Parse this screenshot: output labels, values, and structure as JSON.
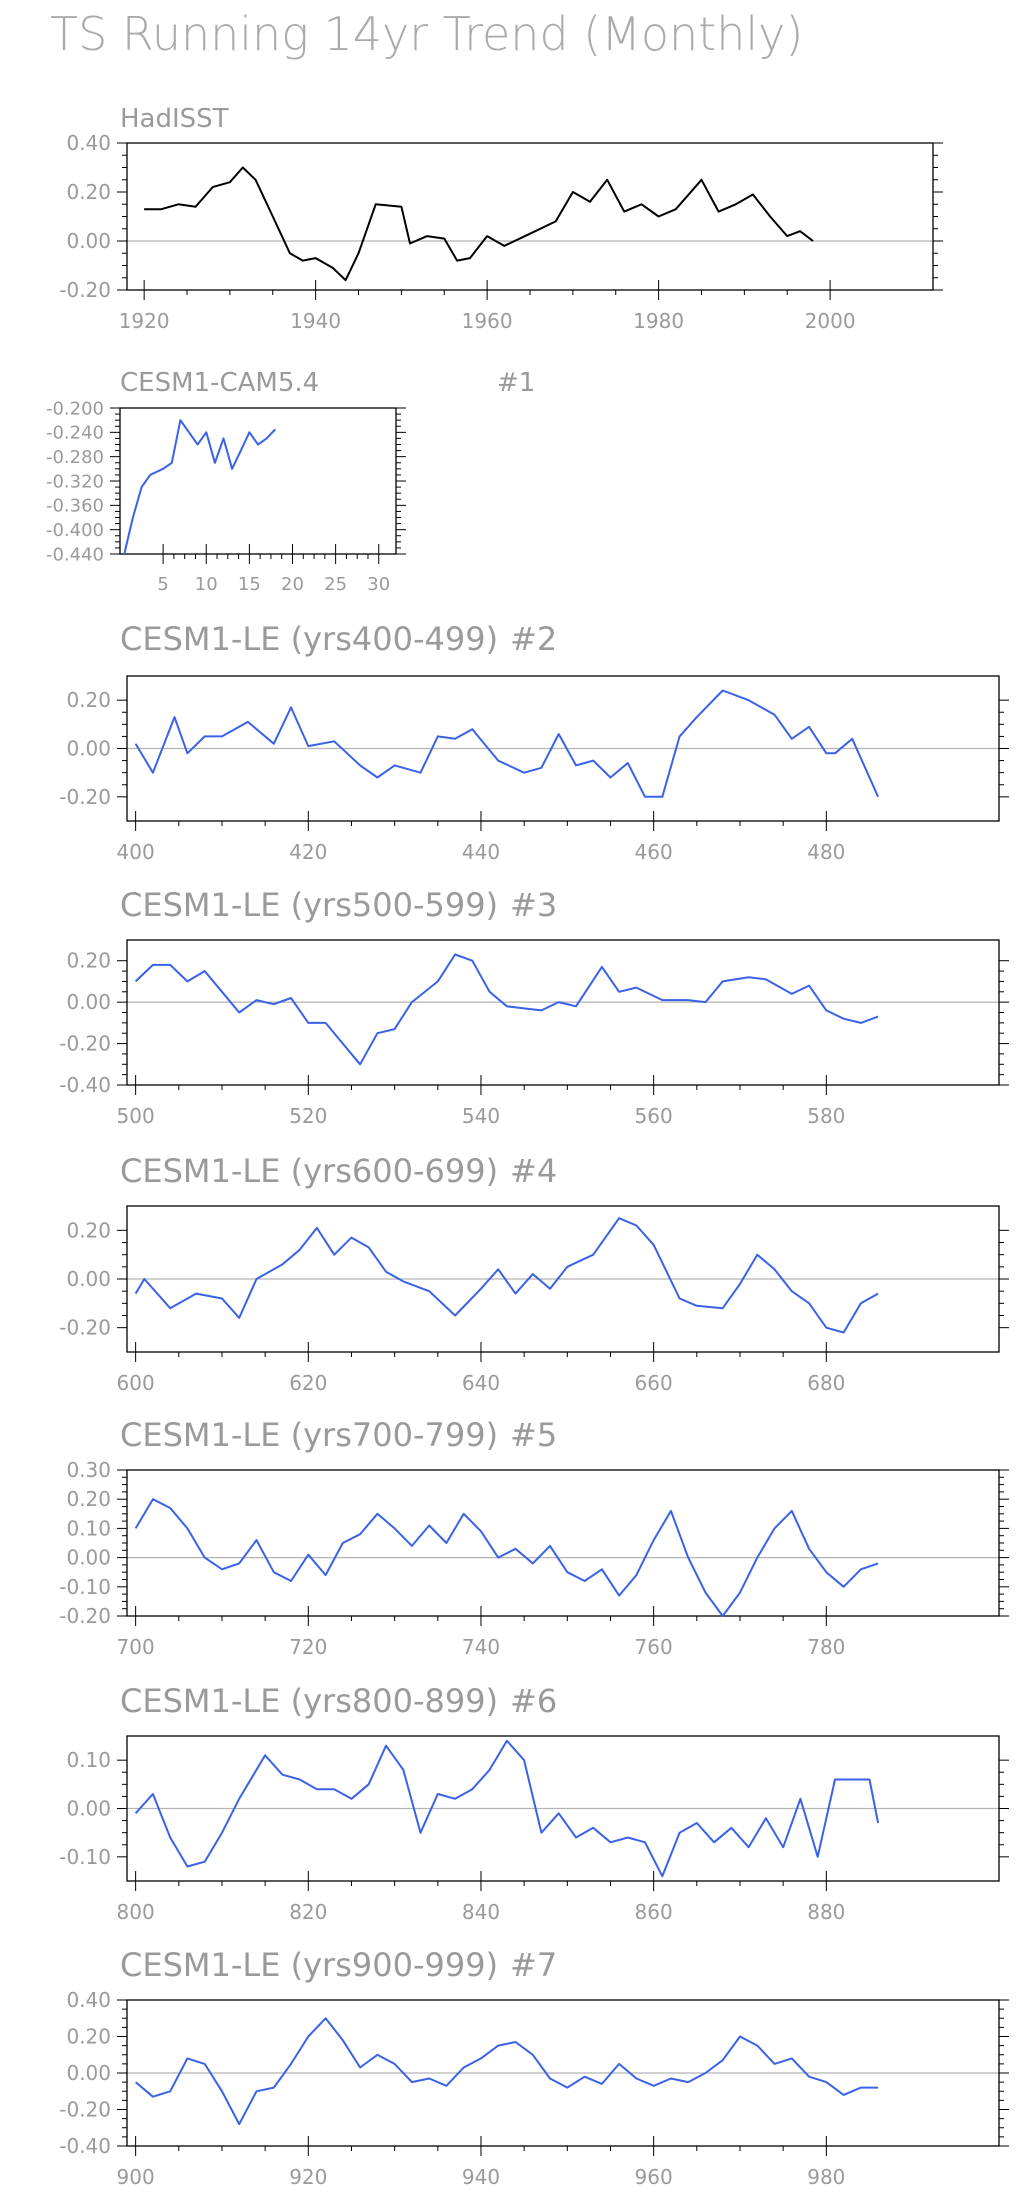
{
  "title": "TS Running 14yr Trend (Monthly)",
  "colors": {
    "text": "#9a9a9a",
    "axis": "#000000",
    "zero_line": "#b4b4b4",
    "obs_line": "#000000",
    "model_line": "#3a62e8"
  },
  "chart_data": [
    {
      "type": "line",
      "label": "HadISST",
      "line_color": "#000000",
      "xlim": [
        1918,
        2012
      ],
      "ylim": [
        -0.2,
        0.4
      ],
      "xticks": [
        1920,
        1940,
        1960,
        1980,
        2000
      ],
      "yticks": [
        -0.2,
        0.0,
        0.2,
        0.4
      ],
      "xticklabels": [
        "1920",
        "1940",
        "1960",
        "1980",
        "2000"
      ],
      "yticklabels": [
        "-0.20",
        "0.00",
        "0.20",
        "0.40"
      ],
      "x": [
        1920,
        1922,
        1924,
        1926,
        1928,
        1930,
        1931.5,
        1933,
        1935,
        1937,
        1938.5,
        1940,
        1942,
        1943.5,
        1945,
        1947,
        1950,
        1951,
        1953,
        1955,
        1956.5,
        1958,
        1960,
        1962,
        1965,
        1968,
        1970,
        1972,
        1974,
        1976,
        1978,
        1980,
        1982,
        1985,
        1987,
        1989,
        1991,
        1993,
        1995,
        1996.5,
        1998
      ],
      "y": [
        0.13,
        0.13,
        0.15,
        0.14,
        0.22,
        0.24,
        0.3,
        0.25,
        0.1,
        -0.05,
        -0.08,
        -0.07,
        -0.11,
        -0.16,
        -0.05,
        0.15,
        0.14,
        -0.01,
        0.02,
        0.01,
        -0.08,
        -0.07,
        0.02,
        -0.02,
        0.03,
        0.08,
        0.2,
        0.16,
        0.25,
        0.12,
        0.15,
        0.1,
        0.13,
        0.25,
        0.12,
        0.15,
        0.19,
        0.1,
        0.02,
        0.04,
        0.0
      ]
    },
    {
      "type": "line",
      "label": "CESM1-CAM5.4",
      "tag": "#1",
      "line_color": "#3a62e8",
      "xlim": [
        0,
        32
      ],
      "ylim": [
        -0.44,
        -0.2
      ],
      "xticks": [
        5,
        10,
        15,
        20,
        25,
        30
      ],
      "yticks": [
        -0.44,
        -0.4,
        -0.36,
        -0.32,
        -0.28,
        -0.24,
        -0.2
      ],
      "xticklabels": [
        "5",
        "10",
        "15",
        "20",
        "25",
        "30"
      ],
      "yticklabels": [
        "-0.440",
        "-0.400",
        "-0.360",
        "-0.320",
        "-0.280",
        "-0.240",
        "-0.200"
      ],
      "x": [
        0.5,
        1.5,
        2.5,
        3.5,
        5,
        6,
        7,
        8,
        9,
        10,
        11,
        12,
        13,
        14,
        15,
        16,
        17,
        18
      ],
      "y": [
        -0.44,
        -0.38,
        -0.33,
        -0.31,
        -0.3,
        -0.29,
        -0.22,
        -0.24,
        -0.26,
        -0.24,
        -0.29,
        -0.25,
        -0.3,
        -0.27,
        -0.24,
        -0.26,
        -0.25,
        -0.235
      ]
    },
    {
      "type": "line",
      "label": "CESM1-LE (yrs400-499)",
      "tag": "#2",
      "line_color": "#3a62e8",
      "xlim": [
        399,
        500
      ],
      "ylim": [
        -0.3,
        0.3
      ],
      "xticks": [
        400,
        420,
        440,
        460,
        480
      ],
      "yticks": [
        -0.2,
        0.0,
        0.2
      ],
      "xticklabels": [
        "400",
        "420",
        "440",
        "460",
        "480"
      ],
      "yticklabels": [
        "-0.20",
        "0.00",
        "0.20"
      ],
      "x": [
        400,
        402,
        404.5,
        406,
        408,
        410,
        413,
        416,
        418,
        420,
        423,
        426,
        428,
        430,
        433,
        435,
        437,
        439,
        442,
        445,
        447,
        449,
        451,
        453,
        455,
        457,
        459,
        461,
        463,
        465,
        468,
        471,
        474,
        476,
        478,
        480,
        481,
        483,
        486
      ],
      "y": [
        0.02,
        -0.1,
        0.13,
        -0.02,
        0.05,
        0.05,
        0.11,
        0.02,
        0.17,
        0.01,
        0.03,
        -0.07,
        -0.12,
        -0.07,
        -0.1,
        0.05,
        0.04,
        0.08,
        -0.05,
        -0.1,
        -0.08,
        0.06,
        -0.07,
        -0.05,
        -0.12,
        -0.06,
        -0.2,
        -0.2,
        0.05,
        0.13,
        0.24,
        0.2,
        0.14,
        0.04,
        0.09,
        -0.02,
        -0.02,
        0.04,
        -0.2
      ]
    },
    {
      "type": "line",
      "label": "CESM1-LE (yrs500-599)",
      "tag": "#3",
      "line_color": "#3a62e8",
      "xlim": [
        499,
        600
      ],
      "ylim": [
        -0.4,
        0.3
      ],
      "xticks": [
        500,
        520,
        540,
        560,
        580
      ],
      "yticks": [
        -0.4,
        -0.2,
        0.0,
        0.2
      ],
      "xticklabels": [
        "500",
        "520",
        "540",
        "560",
        "580"
      ],
      "yticklabels": [
        "-0.40",
        "-0.20",
        "0.00",
        "0.20"
      ],
      "x": [
        500,
        502,
        504,
        506,
        508,
        510,
        512,
        514,
        516,
        518,
        520,
        522,
        524,
        526,
        528,
        530,
        532,
        535,
        537,
        539,
        541,
        543,
        545,
        547,
        549,
        551,
        554,
        556,
        558,
        561,
        564,
        566,
        568,
        571,
        573,
        576,
        578,
        580,
        582,
        584,
        586
      ],
      "y": [
        0.1,
        0.18,
        0.18,
        0.1,
        0.15,
        0.05,
        -0.05,
        0.01,
        -0.01,
        0.02,
        -0.1,
        -0.1,
        -0.2,
        -0.3,
        -0.15,
        -0.13,
        0.0,
        0.1,
        0.23,
        0.2,
        0.05,
        -0.02,
        -0.03,
        -0.04,
        0.0,
        -0.02,
        0.17,
        0.05,
        0.07,
        0.01,
        0.01,
        0.0,
        0.1,
        0.12,
        0.11,
        0.04,
        0.08,
        -0.04,
        -0.08,
        -0.1,
        -0.07
      ]
    },
    {
      "type": "line",
      "label": "CESM1-LE (yrs600-699)",
      "tag": "#4",
      "line_color": "#3a62e8",
      "xlim": [
        599,
        700
      ],
      "ylim": [
        -0.3,
        0.3
      ],
      "xticks": [
        600,
        620,
        640,
        660,
        680
      ],
      "yticks": [
        -0.2,
        0.0,
        0.2
      ],
      "xticklabels": [
        "600",
        "620",
        "640",
        "660",
        "680"
      ],
      "yticklabels": [
        "-0.20",
        "0.00",
        "0.20"
      ],
      "x": [
        600,
        601,
        604,
        607,
        610,
        612,
        614,
        617,
        619,
        621,
        623,
        625,
        627,
        629,
        631,
        634,
        637,
        640,
        642,
        644,
        646,
        648,
        650,
        653,
        656,
        658,
        660,
        663,
        665,
        668,
        670,
        672,
        674,
        676,
        678,
        680,
        682,
        684,
        686
      ],
      "y": [
        -0.06,
        0.0,
        -0.12,
        -0.06,
        -0.08,
        -0.16,
        0.0,
        0.06,
        0.12,
        0.21,
        0.1,
        0.17,
        0.13,
        0.03,
        -0.01,
        -0.05,
        -0.15,
        -0.04,
        0.04,
        -0.06,
        0.02,
        -0.04,
        0.05,
        0.1,
        0.25,
        0.22,
        0.14,
        -0.08,
        -0.11,
        -0.12,
        -0.02,
        0.1,
        0.04,
        -0.05,
        -0.1,
        -0.2,
        -0.22,
        -0.1,
        -0.06
      ]
    },
    {
      "type": "line",
      "label": "CESM1-LE (yrs700-799)",
      "tag": "#5",
      "line_color": "#3a62e8",
      "xlim": [
        699,
        800
      ],
      "ylim": [
        -0.2,
        0.3
      ],
      "xticks": [
        700,
        720,
        740,
        760,
        780
      ],
      "yticks": [
        -0.2,
        -0.1,
        0.0,
        0.1,
        0.2,
        0.3
      ],
      "xticklabels": [
        "700",
        "720",
        "740",
        "760",
        "780"
      ],
      "yticklabels": [
        "-0.20",
        "-0.10",
        "0.00",
        "0.10",
        "0.20",
        "0.30"
      ],
      "x": [
        700,
        702,
        704,
        706,
        708,
        710,
        712,
        714,
        716,
        718,
        720,
        722,
        724,
        726,
        728,
        730,
        732,
        734,
        736,
        738,
        740,
        742,
        744,
        746,
        748,
        750,
        752,
        754,
        756,
        758,
        760,
        762,
        764,
        766,
        768,
        770,
        772,
        774,
        776,
        778,
        780,
        782,
        784,
        786
      ],
      "y": [
        0.1,
        0.2,
        0.17,
        0.1,
        0.0,
        -0.04,
        -0.02,
        0.06,
        -0.05,
        -0.08,
        0.01,
        -0.06,
        0.05,
        0.08,
        0.15,
        0.1,
        0.04,
        0.11,
        0.05,
        0.15,
        0.09,
        0.0,
        0.03,
        -0.02,
        0.04,
        -0.05,
        -0.08,
        -0.04,
        -0.13,
        -0.06,
        0.06,
        0.16,
        0.0,
        -0.12,
        -0.2,
        -0.12,
        0.0,
        0.1,
        0.16,
        0.03,
        -0.05,
        -0.1,
        -0.04,
        -0.02
      ]
    },
    {
      "type": "line",
      "label": "CESM1-LE (yrs800-899)",
      "tag": "#6",
      "line_color": "#3a62e8",
      "xlim": [
        799,
        900
      ],
      "ylim": [
        -0.15,
        0.15
      ],
      "xticks": [
        800,
        820,
        840,
        860,
        880
      ],
      "yticks": [
        -0.1,
        0.0,
        0.1
      ],
      "xticklabels": [
        "800",
        "820",
        "840",
        "860",
        "880"
      ],
      "yticklabels": [
        "-0.10",
        "0.00",
        "0.10"
      ],
      "x": [
        800,
        802,
        804,
        806,
        808,
        810,
        812,
        815,
        817,
        819,
        821,
        823,
        825,
        827,
        829,
        831,
        833,
        835,
        837,
        839,
        841,
        843,
        845,
        847,
        849,
        851,
        853,
        855,
        857,
        859,
        861,
        863,
        865,
        867,
        869,
        871,
        873,
        875,
        877,
        879,
        881,
        883,
        885,
        886
      ],
      "y": [
        -0.01,
        0.03,
        -0.06,
        -0.12,
        -0.11,
        -0.05,
        0.02,
        0.11,
        0.07,
        0.06,
        0.04,
        0.04,
        0.02,
        0.05,
        0.13,
        0.08,
        -0.05,
        0.03,
        0.02,
        0.04,
        0.08,
        0.14,
        0.1,
        -0.05,
        -0.01,
        -0.06,
        -0.04,
        -0.07,
        -0.06,
        -0.07,
        -0.14,
        -0.05,
        -0.03,
        -0.07,
        -0.04,
        -0.08,
        -0.02,
        -0.08,
        0.02,
        -0.1,
        0.06,
        0.06,
        0.06,
        -0.03
      ]
    },
    {
      "type": "line",
      "label": "CESM1-LE (yrs900-999)",
      "tag": "#7",
      "line_color": "#3a62e8",
      "xlim": [
        899,
        1000
      ],
      "ylim": [
        -0.4,
        0.4
      ],
      "xticks": [
        900,
        920,
        940,
        960,
        980
      ],
      "yticks": [
        -0.4,
        -0.2,
        0.0,
        0.2,
        0.4
      ],
      "xticklabels": [
        "900",
        "920",
        "940",
        "960",
        "980"
      ],
      "yticklabels": [
        "-0.40",
        "-0.20",
        "0.00",
        "0.20",
        "0.40"
      ],
      "x": [
        900,
        902,
        904,
        906,
        908,
        910,
        912,
        914,
        916,
        918,
        920,
        922,
        924,
        926,
        928,
        930,
        932,
        934,
        936,
        938,
        940,
        942,
        944,
        946,
        948,
        950,
        952,
        954,
        956,
        958,
        960,
        962,
        964,
        966,
        968,
        970,
        972,
        974,
        976,
        978,
        980,
        982,
        984,
        986
      ],
      "y": [
        -0.05,
        -0.13,
        -0.1,
        0.08,
        0.05,
        -0.1,
        -0.28,
        -0.1,
        -0.08,
        0.05,
        0.2,
        0.3,
        0.18,
        0.03,
        0.1,
        0.05,
        -0.05,
        -0.03,
        -0.07,
        0.03,
        0.08,
        0.15,
        0.17,
        0.1,
        -0.03,
        -0.08,
        -0.02,
        -0.06,
        0.05,
        -0.03,
        -0.07,
        -0.03,
        -0.05,
        0.0,
        0.07,
        0.2,
        0.15,
        0.05,
        0.08,
        -0.02,
        -0.05,
        -0.12,
        -0.08,
        -0.08
      ]
    }
  ]
}
